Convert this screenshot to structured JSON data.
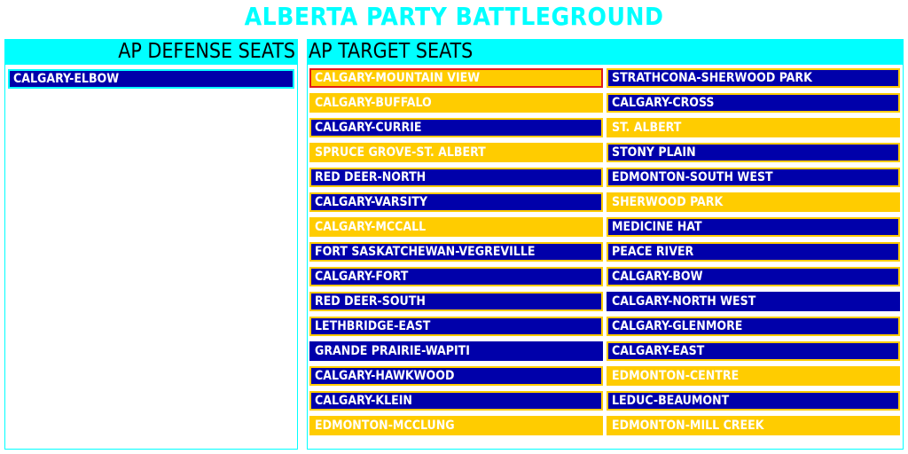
{
  "title": "ALBERTA PARTY BATTLEGROUND",
  "defense": {
    "header": "AP DEFENSE SEATS",
    "seats": [
      "CALGARY-ELBOW"
    ]
  },
  "targets": {
    "header": "AP TARGET SEATS",
    "left": [
      {
        "name": "CALGARY-MOUNTAIN VIEW",
        "fill": "yellow",
        "border": "red"
      },
      {
        "name": "CALGARY-BUFFALO",
        "fill": "yellow",
        "border": "yellow"
      },
      {
        "name": "CALGARY-CURRIE",
        "fill": "blue",
        "border": "yellow"
      },
      {
        "name": "SPRUCE GROVE-ST. ALBERT",
        "fill": "yellow",
        "border": "yellow"
      },
      {
        "name": "RED DEER-NORTH",
        "fill": "blue",
        "border": "yellow"
      },
      {
        "name": "CALGARY-VARSITY",
        "fill": "blue",
        "border": "yellow"
      },
      {
        "name": "CALGARY-MCCALL",
        "fill": "yellow",
        "border": "yellow"
      },
      {
        "name": "FORT SASKATCHEWAN-VEGREVILLE",
        "fill": "blue",
        "border": "yellow"
      },
      {
        "name": "CALGARY-FORT",
        "fill": "blue",
        "border": "yellow"
      },
      {
        "name": "RED DEER-SOUTH",
        "fill": "blue",
        "border": "yellow"
      },
      {
        "name": "LETHBRIDGE-EAST",
        "fill": "blue",
        "border": "yellow"
      },
      {
        "name": "GRANDE PRAIRIE-WAPITI",
        "fill": "blue",
        "border": "blue"
      },
      {
        "name": "CALGARY-HAWKWOOD",
        "fill": "blue",
        "border": "yellow"
      },
      {
        "name": "CALGARY-KLEIN",
        "fill": "blue",
        "border": "yellow"
      },
      {
        "name": "EDMONTON-MCCLUNG",
        "fill": "yellow",
        "border": "yellow"
      }
    ],
    "right": [
      {
        "name": "STRATHCONA-SHERWOOD PARK",
        "fill": "blue",
        "border": "yellow"
      },
      {
        "name": "CALGARY-CROSS",
        "fill": "blue",
        "border": "yellow"
      },
      {
        "name": "ST. ALBERT",
        "fill": "yellow",
        "border": "yellow"
      },
      {
        "name": "STONY PLAIN",
        "fill": "blue",
        "border": "yellow"
      },
      {
        "name": "EDMONTON-SOUTH WEST",
        "fill": "blue",
        "border": "yellow"
      },
      {
        "name": "SHERWOOD PARK",
        "fill": "yellow",
        "border": "yellow"
      },
      {
        "name": "MEDICINE HAT",
        "fill": "blue",
        "border": "yellow"
      },
      {
        "name": "PEACE RIVER",
        "fill": "blue",
        "border": "yellow"
      },
      {
        "name": "CALGARY-BOW",
        "fill": "blue",
        "border": "yellow"
      },
      {
        "name": "CALGARY-NORTH WEST",
        "fill": "blue",
        "border": "blue"
      },
      {
        "name": "CALGARY-GLENMORE",
        "fill": "blue",
        "border": "yellow"
      },
      {
        "name": "CALGARY-EAST",
        "fill": "blue",
        "border": "yellow"
      },
      {
        "name": "EDMONTON-CENTRE",
        "fill": "yellow",
        "border": "yellow"
      },
      {
        "name": "LEDUC-BEAUMONT",
        "fill": "blue",
        "border": "yellow"
      },
      {
        "name": "EDMONTON-MILL CREEK",
        "fill": "yellow",
        "border": "yellow"
      }
    ]
  },
  "colors": {
    "accent": "#00ffff",
    "blue": "#0000aa",
    "yellow": "#ffcc00",
    "red": "#e21b1b"
  }
}
